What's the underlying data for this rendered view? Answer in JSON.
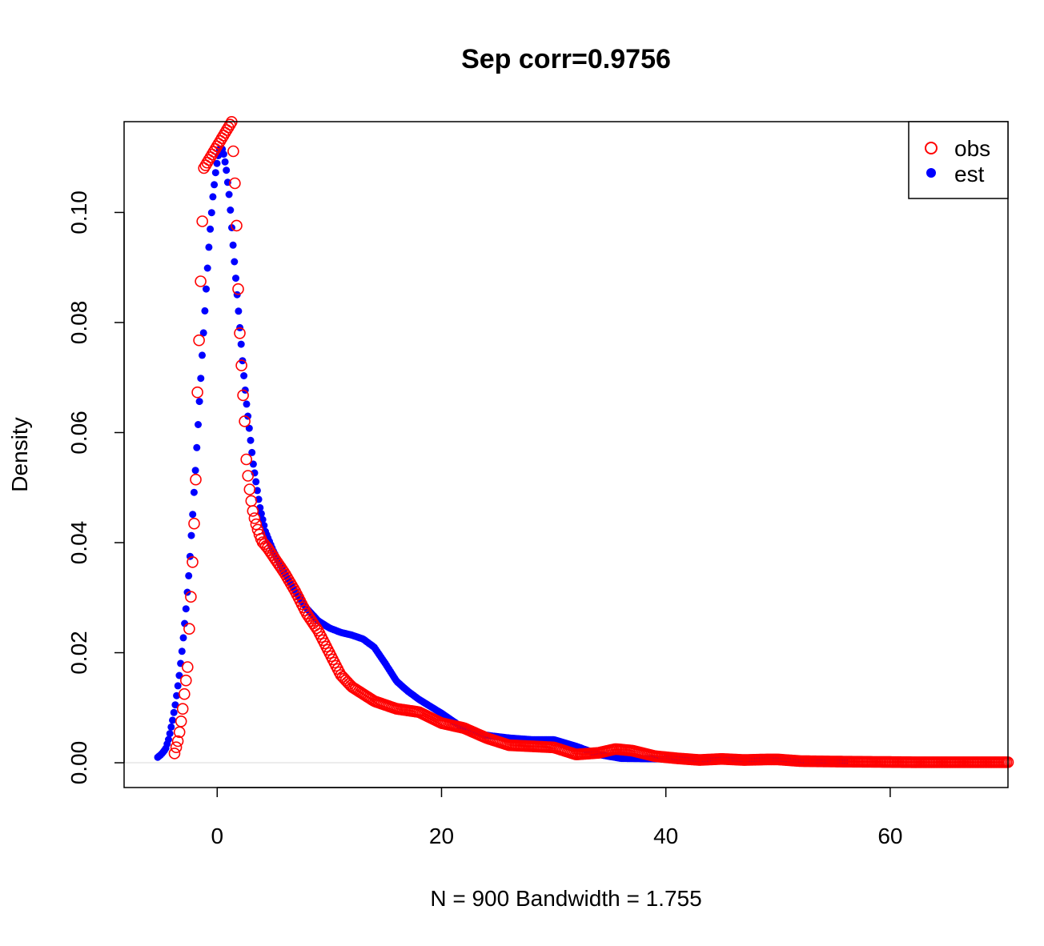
{
  "chart_data": {
    "type": "scatter",
    "title": "Sep corr=0.9756",
    "xlabel": "N = 900   Bandwidth = 1.755",
    "ylabel": "Density",
    "xlim": [
      -8.3,
      70.5
    ],
    "ylim": [
      -0.0045,
      0.1165
    ],
    "x_ticks": [
      0,
      20,
      40,
      60
    ],
    "x_tick_labels": [
      "0",
      "20",
      "40",
      "60"
    ],
    "y_ticks": [
      0.0,
      0.02,
      0.04,
      0.06,
      0.08,
      0.1
    ],
    "y_tick_labels": [
      "0.00",
      "0.02",
      "0.04",
      "0.06",
      "0.08",
      "0.10"
    ],
    "grid": false,
    "zero_line": true,
    "legend_position": "top-right",
    "series": [
      {
        "name": "obs",
        "color": "#ff0000",
        "marker": "open-circle",
        "x_range": [
          -3.8,
          70.5
        ],
        "points": [
          [
            -3.8,
            0.0017
          ],
          [
            -3.5,
            0.004
          ],
          [
            -3.3,
            0.0063
          ],
          [
            -3.1,
            0.0093
          ],
          [
            -2.9,
            0.013
          ],
          [
            -2.6,
            0.018
          ],
          [
            -2.5,
            0.024
          ],
          [
            -2.3,
            0.032
          ],
          [
            -2.1,
            0.041
          ],
          [
            -1.9,
            0.052
          ],
          [
            -1.8,
            0.065
          ],
          [
            -1.6,
            0.078
          ],
          [
            -1.4,
            0.093
          ],
          [
            -1.2,
            0.108
          ],
          [
            1.3,
            0.1165
          ],
          [
            1.6,
            0.1045
          ],
          [
            1.8,
            0.0935
          ],
          [
            1.9,
            0.083
          ],
          [
            2.1,
            0.0745
          ],
          [
            2.3,
            0.067
          ],
          [
            2.5,
            0.0605
          ],
          [
            2.6,
            0.055
          ],
          [
            2.8,
            0.051
          ],
          [
            3.0,
            0.048
          ],
          [
            3.2,
            0.0455
          ],
          [
            3.4,
            0.0438
          ],
          [
            3.7,
            0.0418
          ],
          [
            4.0,
            0.0402
          ],
          [
            4.5,
            0.039
          ],
          [
            5.0,
            0.0375
          ],
          [
            6.0,
            0.0345
          ],
          [
            7.0,
            0.031
          ],
          [
            8.0,
            0.027
          ],
          [
            9.0,
            0.024
          ],
          [
            10.0,
            0.02
          ],
          [
            11.0,
            0.016
          ],
          [
            12.0,
            0.0138
          ],
          [
            14.0,
            0.0112
          ],
          [
            16.0,
            0.0098
          ],
          [
            18.0,
            0.0092
          ],
          [
            20.0,
            0.0072
          ],
          [
            22.0,
            0.0063
          ],
          [
            24.0,
            0.0045
          ],
          [
            26.0,
            0.0032
          ],
          [
            28.0,
            0.003
          ],
          [
            30.0,
            0.0028
          ],
          [
            32.0,
            0.0015
          ],
          [
            34.0,
            0.0018
          ],
          [
            35.5,
            0.0025
          ],
          [
            37.0,
            0.0022
          ],
          [
            39.0,
            0.0012
          ],
          [
            41.0,
            0.0008
          ],
          [
            43.0,
            0.0005
          ],
          [
            45.0,
            0.0007
          ],
          [
            47.0,
            0.0005
          ],
          [
            49.0,
            0.0006
          ],
          [
            50.0,
            0.0006
          ],
          [
            52.0,
            0.0003
          ],
          [
            56.0,
            0.0002
          ],
          [
            62.0,
            0.0001
          ],
          [
            70.5,
            0.0001
          ]
        ]
      },
      {
        "name": "est",
        "color": "#0000ff",
        "marker": "filled-circle",
        "x_range": [
          -5.3,
          56.0
        ],
        "points": [
          [
            -5.3,
            0.001
          ],
          [
            -5.0,
            0.0015
          ],
          [
            -4.6,
            0.0025
          ],
          [
            -4.3,
            0.0045
          ],
          [
            -4.0,
            0.0075
          ],
          [
            -3.7,
            0.011
          ],
          [
            -3.4,
            0.0155
          ],
          [
            -3.1,
            0.021
          ],
          [
            -2.8,
            0.0275
          ],
          [
            -2.5,
            0.035
          ],
          [
            -2.2,
            0.0445
          ],
          [
            -1.9,
            0.0545
          ],
          [
            -1.6,
            0.065
          ],
          [
            -1.3,
            0.0755
          ],
          [
            -1.0,
            0.0855
          ],
          [
            -0.7,
            0.095
          ],
          [
            -0.4,
            0.1025
          ],
          [
            -0.1,
            0.108
          ],
          [
            0.2,
            0.1115
          ],
          [
            0.5,
            0.1115
          ],
          [
            0.8,
            0.108
          ],
          [
            1.1,
            0.1025
          ],
          [
            1.4,
            0.0945
          ],
          [
            1.7,
            0.087
          ],
          [
            2.0,
            0.0795
          ],
          [
            2.3,
            0.072
          ],
          [
            2.6,
            0.0655
          ],
          [
            2.9,
            0.06
          ],
          [
            3.2,
            0.0545
          ],
          [
            3.5,
            0.0505
          ],
          [
            3.8,
            0.0465
          ],
          [
            4.3,
            0.042
          ],
          [
            5.0,
            0.0385
          ],
          [
            6.0,
            0.0345
          ],
          [
            7.0,
            0.031
          ],
          [
            8.0,
            0.028
          ],
          [
            9.0,
            0.0258
          ],
          [
            10.0,
            0.0245
          ],
          [
            11.0,
            0.0237
          ],
          [
            12.0,
            0.0232
          ],
          [
            13.0,
            0.0225
          ],
          [
            14.0,
            0.021
          ],
          [
            15.0,
            0.018
          ],
          [
            16.0,
            0.0148
          ],
          [
            17.0,
            0.013
          ],
          [
            18.0,
            0.0115
          ],
          [
            20.0,
            0.009
          ],
          [
            22.0,
            0.0062
          ],
          [
            24.0,
            0.005
          ],
          [
            26.0,
            0.0045
          ],
          [
            28.0,
            0.0042
          ],
          [
            30.0,
            0.0042
          ],
          [
            32.0,
            0.003
          ],
          [
            34.0,
            0.0015
          ],
          [
            36.0,
            0.0008
          ],
          [
            40.0,
            0.0007
          ],
          [
            44.0,
            0.0005
          ],
          [
            48.0,
            0.0004
          ],
          [
            52.0,
            0.0003
          ],
          [
            56.0,
            0.0002
          ]
        ]
      }
    ]
  }
}
